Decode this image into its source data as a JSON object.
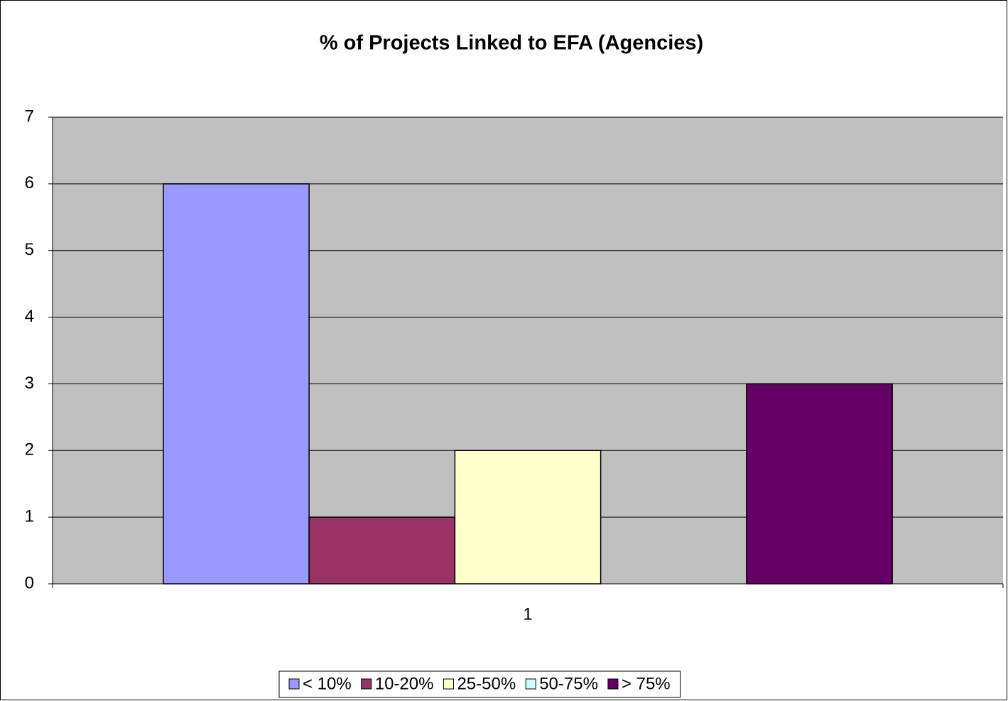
{
  "chart_data": {
    "type": "bar",
    "title": "% of Projects Linked to EFA (Agencies)",
    "categories": [
      "1"
    ],
    "series": [
      {
        "name": "< 10%",
        "color": "#9999ff",
        "values": [
          6
        ]
      },
      {
        "name": "10-20%",
        "color": "#993366",
        "values": [
          1
        ]
      },
      {
        "name": "25-50%",
        "color": "#ffffcc",
        "values": [
          2
        ]
      },
      {
        "name": "50-75%",
        "color": "#ccffff",
        "values": [
          0
        ]
      },
      {
        "name": "> 75%",
        "color": "#660066",
        "values": [
          3
        ]
      }
    ],
    "ylim": [
      0,
      7
    ],
    "yticks": [
      0,
      1,
      2,
      3,
      4,
      5,
      6,
      7
    ],
    "grid": true,
    "legend": "bottom"
  }
}
